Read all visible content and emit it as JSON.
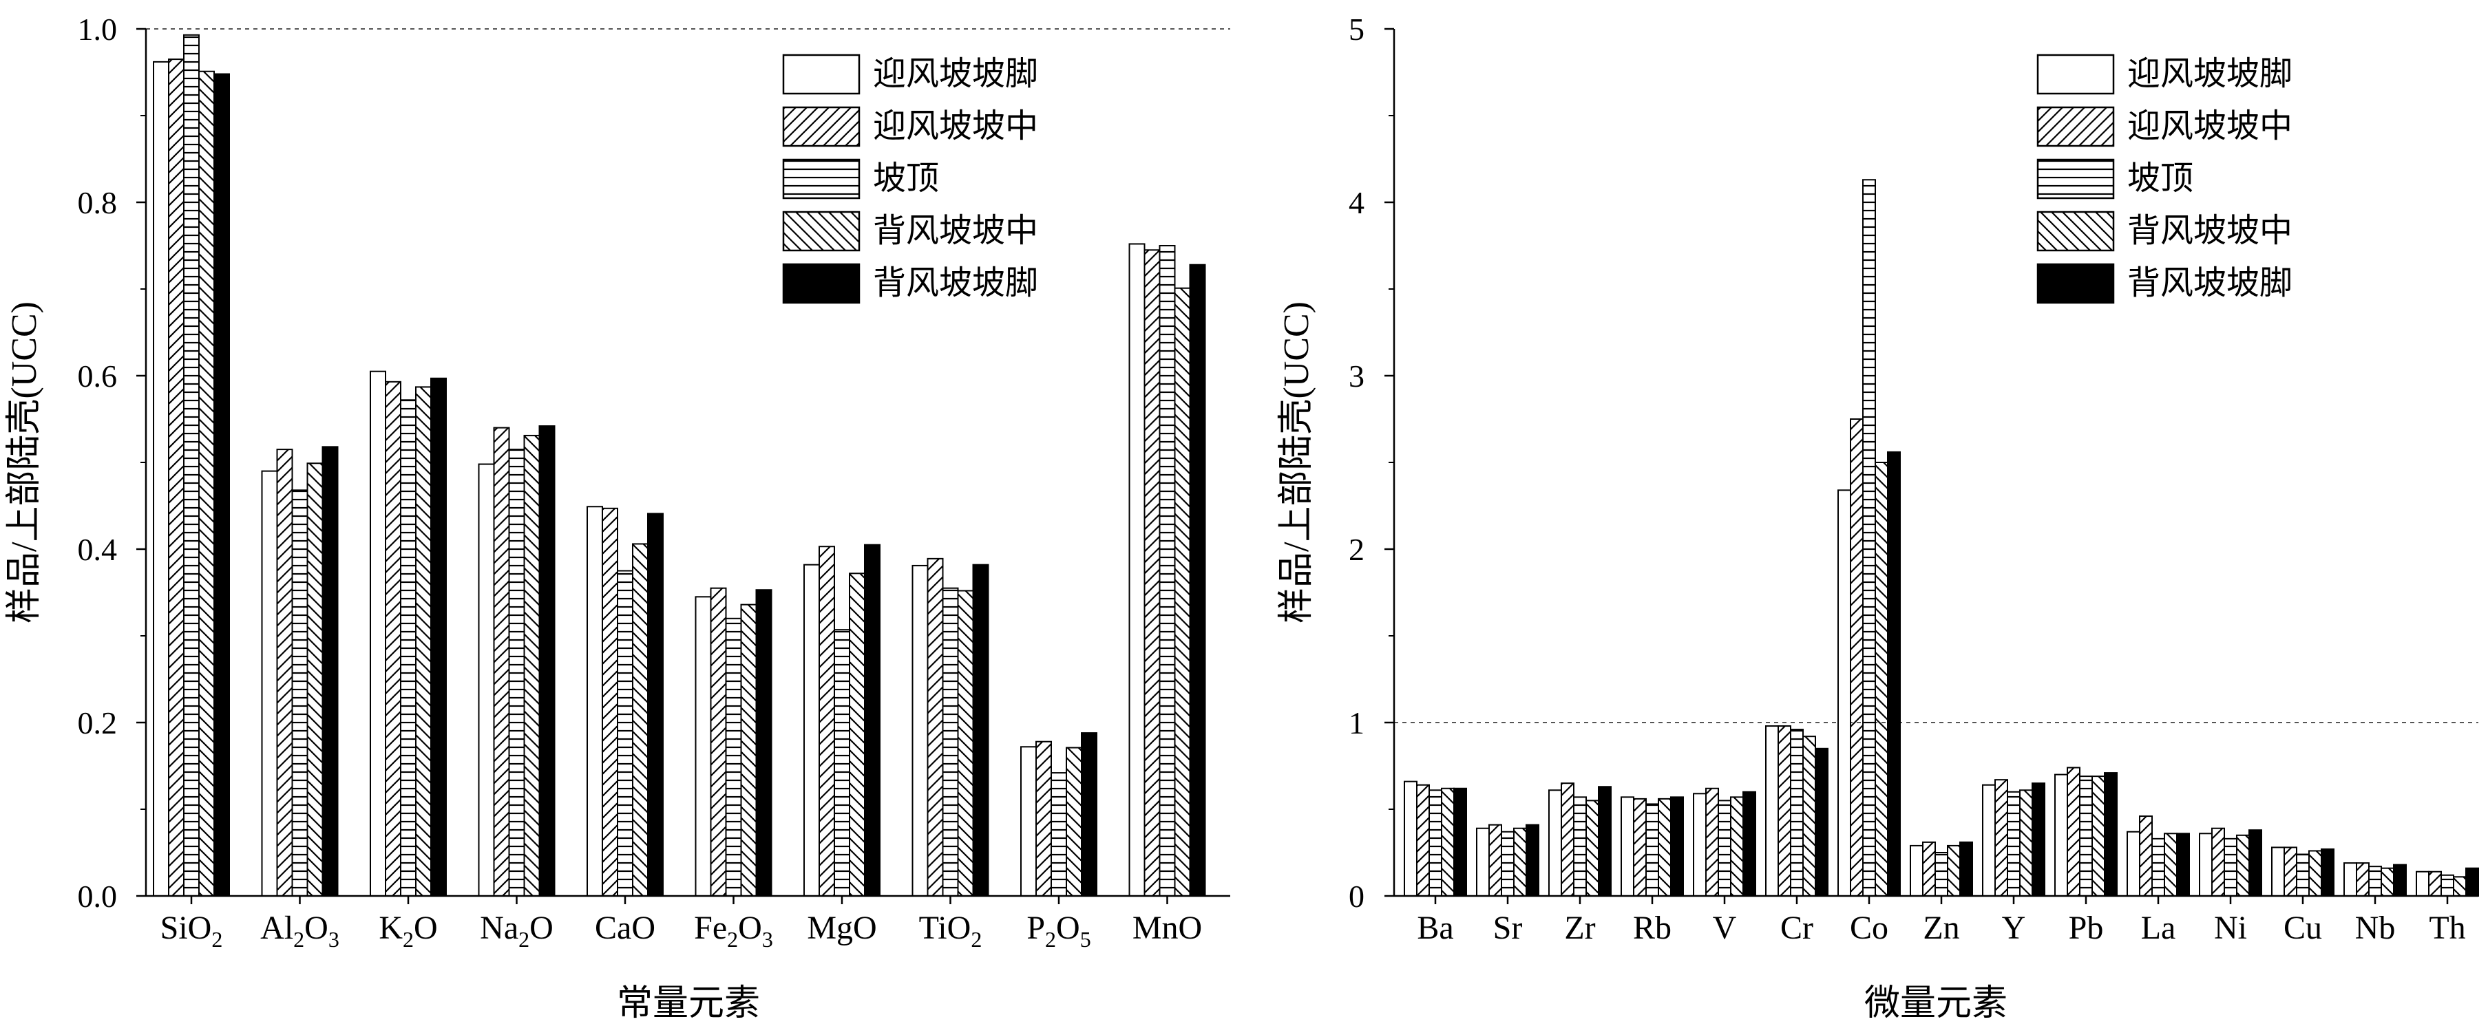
{
  "legend_labels": [
    "迎风坡坡脚",
    "迎风坡坡中",
    "坡顶",
    "背风坡坡中",
    "背风坡坡脚"
  ],
  "chart_data": [
    {
      "type": "bar",
      "ylabel": "样品/上部陆壳(UCC)",
      "xlabel": "常量元素",
      "ylim": [
        0,
        1.0
      ],
      "yticks": [
        "0.0",
        "0.2",
        "0.4",
        "0.6",
        "0.8",
        "1.0"
      ],
      "reference_line": 1.0,
      "categories": [
        {
          "base": "SiO",
          "sub": "2",
          "rest": ""
        },
        {
          "base": "Al",
          "sub": "2",
          "rest": "O",
          "sub2": "3"
        },
        {
          "base": "K",
          "sub": "2",
          "rest": "O"
        },
        {
          "base": "Na",
          "sub": "2",
          "rest": "O"
        },
        {
          "base": "CaO",
          "sub": "",
          "rest": ""
        },
        {
          "base": "Fe",
          "sub": "2",
          "rest": "O",
          "sub2": "3"
        },
        {
          "base": "MgO",
          "sub": "",
          "rest": ""
        },
        {
          "base": "TiO",
          "sub": "2",
          "rest": ""
        },
        {
          "base": "P",
          "sub": "2",
          "rest": "O",
          "sub2": "5"
        },
        {
          "base": "MnO",
          "sub": "",
          "rest": ""
        }
      ],
      "series": [
        {
          "name": "迎风坡坡脚",
          "values": [
            0.962,
            0.49,
            0.605,
            0.498,
            0.449,
            0.345,
            0.382,
            0.381,
            0.172,
            0.752
          ]
        },
        {
          "name": "迎风坡坡中",
          "values": [
            0.965,
            0.515,
            0.593,
            0.54,
            0.447,
            0.355,
            0.403,
            0.389,
            0.178,
            0.745
          ]
        },
        {
          "name": "坡顶",
          "values": [
            0.993,
            0.468,
            0.572,
            0.515,
            0.375,
            0.32,
            0.307,
            0.355,
            0.142,
            0.75
          ]
        },
        {
          "name": "背风坡坡中",
          "values": [
            0.951,
            0.499,
            0.587,
            0.531,
            0.406,
            0.336,
            0.372,
            0.352,
            0.171,
            0.701
          ]
        },
        {
          "name": "背风坡坡脚",
          "values": [
            0.948,
            0.518,
            0.597,
            0.542,
            0.441,
            0.353,
            0.405,
            0.382,
            0.188,
            0.728
          ]
        }
      ]
    },
    {
      "type": "bar",
      "ylabel": "样品/上部陆壳(UCC)",
      "xlabel": "微量元素",
      "ylim": [
        0,
        5
      ],
      "yticks": [
        "0",
        "1",
        "2",
        "3",
        "4",
        "5"
      ],
      "reference_line": 1,
      "categories": [
        {
          "base": "Ba"
        },
        {
          "base": "Sr"
        },
        {
          "base": "Zr"
        },
        {
          "base": "Rb"
        },
        {
          "base": "V"
        },
        {
          "base": "Cr"
        },
        {
          "base": "Co"
        },
        {
          "base": "Zn"
        },
        {
          "base": "Y"
        },
        {
          "base": "Pb"
        },
        {
          "base": "La"
        },
        {
          "base": "Ni"
        },
        {
          "base": "Cu"
        },
        {
          "base": "Nb"
        },
        {
          "base": "Th"
        }
      ],
      "series": [
        {
          "name": "迎风坡坡脚",
          "values": [
            0.66,
            0.39,
            0.61,
            0.57,
            0.59,
            0.98,
            2.34,
            0.29,
            0.64,
            0.7,
            0.37,
            0.36,
            0.28,
            0.19,
            0.14
          ]
        },
        {
          "name": "迎风坡坡中",
          "values": [
            0.64,
            0.41,
            0.65,
            0.56,
            0.62,
            0.98,
            2.75,
            0.31,
            0.67,
            0.74,
            0.46,
            0.39,
            0.28,
            0.19,
            0.14
          ]
        },
        {
          "name": "坡顶",
          "values": [
            0.61,
            0.37,
            0.57,
            0.53,
            0.55,
            0.96,
            4.13,
            0.25,
            0.6,
            0.69,
            0.33,
            0.33,
            0.24,
            0.17,
            0.12
          ]
        },
        {
          "name": "背风坡坡中",
          "values": [
            0.62,
            0.39,
            0.55,
            0.56,
            0.57,
            0.92,
            2.5,
            0.29,
            0.61,
            0.69,
            0.36,
            0.35,
            0.26,
            0.16,
            0.11
          ]
        },
        {
          "name": "背风坡坡脚",
          "values": [
            0.62,
            0.41,
            0.63,
            0.57,
            0.6,
            0.85,
            2.56,
            0.31,
            0.65,
            0.71,
            0.36,
            0.38,
            0.27,
            0.18,
            0.16
          ]
        }
      ]
    }
  ]
}
